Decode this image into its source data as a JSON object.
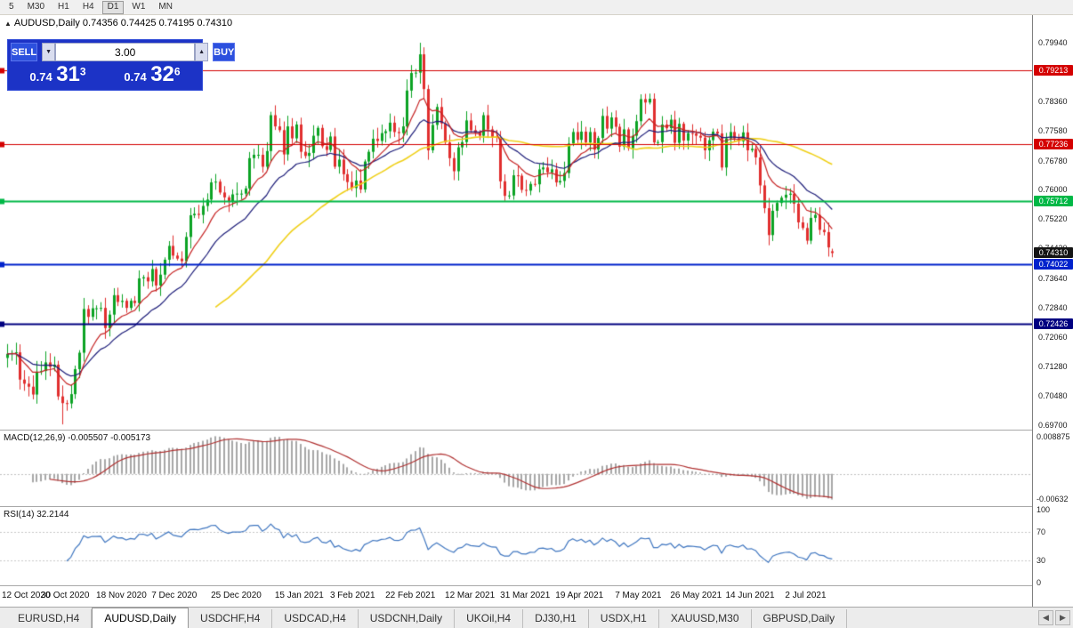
{
  "toolbar": {
    "items": [
      "5",
      "M30",
      "H1",
      "H4",
      "D1",
      "W1",
      "MN"
    ],
    "active": "D1"
  },
  "header": {
    "icon": "▲",
    "text": "AUDUSD,Daily 0.74356 0.74425 0.74195 0.74310"
  },
  "icons": {
    "volume_down": "▼",
    "volume_up": "▲",
    "scroll_left": "◀",
    "scroll_right": "▶"
  },
  "trade_panel": {
    "sell_label": "SELL",
    "buy_label": "BUY",
    "volume": "3.00",
    "sell_price": {
      "prefix": "0.74",
      "pips": "31",
      "pipette": "3"
    },
    "buy_price": {
      "prefix": "0.74",
      "pips": "32",
      "pipette": "6"
    }
  },
  "tabs": {
    "items": [
      "EURUSD,H4",
      "AUDUSD,Daily",
      "USDCHF,H4",
      "USDCAD,H4",
      "USDCNH,Daily",
      "UKOil,H4",
      "DJ30,H1",
      "USDX,H1",
      "XAUUSD,M30",
      "GBPUSD,Daily"
    ],
    "active_index": 1
  },
  "chart_data": {
    "type": "candlestick",
    "symbol": "AUDUSD",
    "timeframe": "Daily",
    "current_ohlc": {
      "open": 0.74356,
      "high": 0.74425,
      "low": 0.74195,
      "close": 0.7431
    },
    "open_first": 0.715,
    "closes": [
      0.7161,
      0.7163,
      0.7165,
      0.7092,
      0.7081,
      0.7073,
      0.7052,
      0.7113,
      0.7115,
      0.7138,
      0.7126,
      0.7132,
      0.7047,
      0.7029,
      0.7028,
      0.7053,
      0.712,
      0.7164,
      0.7281,
      0.726,
      0.7283,
      0.7283,
      0.7284,
      0.723,
      0.7266,
      0.7318,
      0.73,
      0.7303,
      0.7284,
      0.7303,
      0.7297,
      0.7363,
      0.7366,
      0.7355,
      0.7388,
      0.7344,
      0.7373,
      0.7413,
      0.745,
      0.7424,
      0.7416,
      0.7409,
      0.7474,
      0.7532,
      0.7536,
      0.7533,
      0.7557,
      0.7574,
      0.762,
      0.7622,
      0.7593,
      0.758,
      0.757,
      0.7588,
      0.759,
      0.759,
      0.7604,
      0.7685,
      0.7694,
      0.7694,
      0.7662,
      0.7704,
      0.78,
      0.777,
      0.776,
      0.7695,
      0.777,
      0.7738,
      0.7775,
      0.7702,
      0.7691,
      0.7699,
      0.7745,
      0.7766,
      0.7717,
      0.7707,
      0.7743,
      0.7662,
      0.7681,
      0.7642,
      0.7621,
      0.7605,
      0.7625,
      0.7601,
      0.7676,
      0.7702,
      0.7737,
      0.7731,
      0.7752,
      0.7757,
      0.778,
      0.7755,
      0.7752,
      0.777,
      0.7866,
      0.7913,
      0.7914,
      0.7963,
      0.787,
      0.7706,
      0.7774,
      0.7822,
      0.7778,
      0.7727,
      0.7685,
      0.765,
      0.7714,
      0.7728,
      0.7786,
      0.776,
      0.7753,
      0.7745,
      0.78,
      0.7762,
      0.7742,
      0.774,
      0.7623,
      0.7584,
      0.7585,
      0.7639,
      0.7638,
      0.76,
      0.7598,
      0.7616,
      0.7615,
      0.7655,
      0.766,
      0.7647,
      0.7655,
      0.762,
      0.7624,
      0.7645,
      0.7724,
      0.7755,
      0.7734,
      0.7756,
      0.7727,
      0.7755,
      0.7708,
      0.7739,
      0.7798,
      0.7764,
      0.7794,
      0.7769,
      0.7716,
      0.7762,
      0.7712,
      0.7745,
      0.7784,
      0.7843,
      0.7834,
      0.7844,
      0.7727,
      0.7728,
      0.7775,
      0.7765,
      0.7788,
      0.7726,
      0.7777,
      0.7732,
      0.7752,
      0.7751,
      0.7745,
      0.774,
      0.7706,
      0.7733,
      0.7756,
      0.7751,
      0.766,
      0.7738,
      0.7755,
      0.7738,
      0.773,
      0.7754,
      0.7706,
      0.771,
      0.7687,
      0.7612,
      0.7551,
      0.7479,
      0.7544,
      0.7565,
      0.7579,
      0.7587,
      0.759,
      0.7563,
      0.7513,
      0.7498,
      0.7464,
      0.7525,
      0.7533,
      0.7493,
      0.7487,
      0.7446,
      0.7431
    ],
    "special_wicks": {
      "13": {
        "low": 0.6972
      },
      "97": {
        "high": 0.7994
      }
    },
    "y_axis": {
      "min": 0.6958,
      "max": 0.8068,
      "ticks": [
        0.7994,
        0.7836,
        0.7758,
        0.7678,
        0.76,
        0.7522,
        0.7443,
        0.7364,
        0.7284,
        0.7206,
        0.7128,
        0.7048,
        0.697
      ]
    },
    "x_axis": {
      "labels": [
        "12 Oct 2020",
        "30 Oct 2020",
        "18 Nov 2020",
        "7 Dec 2020",
        "25 Dec 2020",
        "15 Jan 2021",
        "3 Feb 2021",
        "22 Feb 2021",
        "12 Mar 2021",
        "31 Mar 2021",
        "19 Apr 2021",
        "7 May 2021",
        "26 May 2021",
        "14 Jun 2021",
        "2 Jul 2021"
      ],
      "label_indices": [
        0,
        14,
        27,
        40,
        54,
        69,
        82,
        95,
        109,
        122,
        135,
        149,
        162,
        175,
        189
      ]
    },
    "horizontal_lines": [
      {
        "price": 0.79213,
        "label": "0.79213",
        "color": "#d40000",
        "width": 1
      },
      {
        "price": 0.77236,
        "label": "0.77236",
        "color": "#d40000",
        "width": 1
      },
      {
        "price": 0.75712,
        "label": "0.75712",
        "color": "#00b846",
        "width": 2
      },
      {
        "price": 0.74022,
        "label": "0.74022",
        "color": "#0022cc",
        "width": 2
      },
      {
        "price": 0.72426,
        "label": "0.72426",
        "color": "#000080",
        "width": 2
      }
    ],
    "current_price_tag": {
      "price": 0.7431,
      "label": "0.74310",
      "color": "#141414"
    },
    "moving_averages": [
      {
        "type": "sma",
        "period": 50,
        "color": "#f0d018",
        "width": 1.6
      },
      {
        "type": "ema",
        "period": 21,
        "color": "#1b1b78",
        "width": 1.2
      },
      {
        "type": "ema",
        "period": 10,
        "color": "#c62222",
        "width": 1.2
      }
    ],
    "indicators": [
      {
        "name": "MACD",
        "params": [
          12,
          26,
          9
        ],
        "label": "MACD(12,26,9) -0.005507 -0.005173",
        "scale_labels": [
          "0.008875",
          "-0.00632"
        ],
        "histogram_color": "#a8a8a8",
        "signal_color": "#b03030"
      },
      {
        "name": "RSI",
        "params": [
          14
        ],
        "label": "RSI(14) 32.2144",
        "scale_labels": [
          "100",
          "70",
          "30",
          "0"
        ],
        "levels": [
          70,
          30
        ],
        "line_color": "#3f76c0"
      }
    ]
  }
}
